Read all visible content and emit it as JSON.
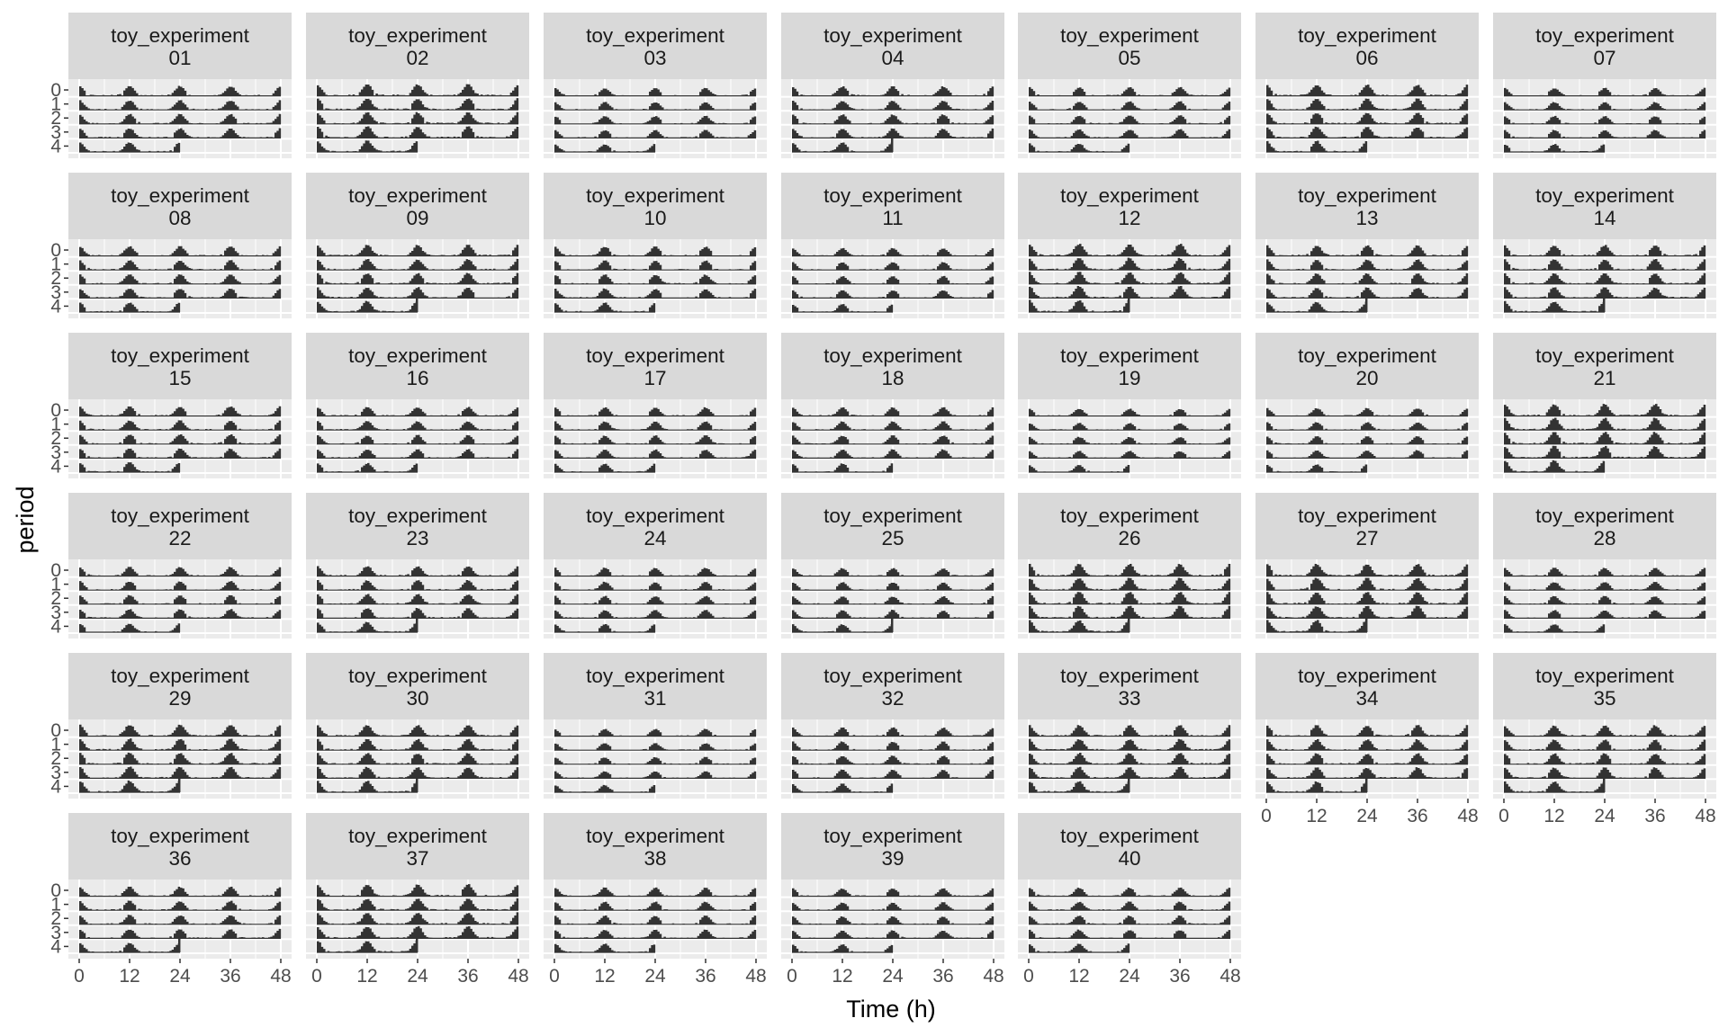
{
  "chart_data": {
    "type": "bar",
    "layout": "faceted-actogram",
    "xlabel": "Time (h)",
    "ylabel": "period",
    "x_ticks": [
      0,
      12,
      24,
      36,
      48
    ],
    "xlim": [
      0,
      48
    ],
    "y_ticks": [
      0,
      1,
      2,
      3,
      4
    ],
    "facet_prefix": "toy_experiment",
    "facets": [
      {
        "label": "01",
        "activity": 0.55,
        "end_spike": false
      },
      {
        "label": "02",
        "activity": 0.8,
        "end_spike": false
      },
      {
        "label": "03",
        "activity": 0.3,
        "end_spike": false
      },
      {
        "label": "04",
        "activity": 0.5,
        "end_spike": true
      },
      {
        "label": "05",
        "activity": 0.4,
        "end_spike": false
      },
      {
        "label": "06",
        "activity": 0.75,
        "end_spike": false
      },
      {
        "label": "07",
        "activity": 0.3,
        "end_spike": false
      },
      {
        "label": "08",
        "activity": 0.55,
        "end_spike": false
      },
      {
        "label": "09",
        "activity": 0.7,
        "end_spike": true
      },
      {
        "label": "10",
        "activity": 0.5,
        "end_spike": false
      },
      {
        "label": "11",
        "activity": 0.3,
        "end_spike": false
      },
      {
        "label": "12",
        "activity": 0.85,
        "end_spike": true
      },
      {
        "label": "13",
        "activity": 0.65,
        "end_spike": true
      },
      {
        "label": "14",
        "activity": 0.7,
        "end_spike": true
      },
      {
        "label": "15",
        "activity": 0.55,
        "end_spike": false
      },
      {
        "label": "16",
        "activity": 0.45,
        "end_spike": false
      },
      {
        "label": "17",
        "activity": 0.4,
        "end_spike": false
      },
      {
        "label": "18",
        "activity": 0.4,
        "end_spike": false
      },
      {
        "label": "19",
        "activity": 0.2,
        "end_spike": false
      },
      {
        "label": "20",
        "activity": 0.3,
        "end_spike": false
      },
      {
        "label": "21",
        "activity": 0.85,
        "end_spike": false
      },
      {
        "label": "22",
        "activity": 0.45,
        "end_spike": false
      },
      {
        "label": "23",
        "activity": 0.6,
        "end_spike": true
      },
      {
        "label": "24",
        "activity": 0.35,
        "end_spike": false
      },
      {
        "label": "25",
        "activity": 0.3,
        "end_spike": true
      },
      {
        "label": "26",
        "activity": 0.9,
        "end_spike": true
      },
      {
        "label": "27",
        "activity": 0.9,
        "end_spike": true
      },
      {
        "label": "28",
        "activity": 0.35,
        "end_spike": false
      },
      {
        "label": "29",
        "activity": 0.8,
        "end_spike": true
      },
      {
        "label": "30",
        "activity": 0.75,
        "end_spike": true
      },
      {
        "label": "31",
        "activity": 0.2,
        "end_spike": false
      },
      {
        "label": "32",
        "activity": 0.4,
        "end_spike": false
      },
      {
        "label": "33",
        "activity": 0.75,
        "end_spike": true
      },
      {
        "label": "34",
        "activity": 0.7,
        "end_spike": true
      },
      {
        "label": "35",
        "activity": 0.7,
        "end_spike": true
      },
      {
        "label": "36",
        "activity": 0.5,
        "end_spike": true
      },
      {
        "label": "37",
        "activity": 0.85,
        "end_spike": true
      },
      {
        "label": "38",
        "activity": 0.4,
        "end_spike": false
      },
      {
        "label": "39",
        "activity": 0.3,
        "end_spike": false
      },
      {
        "label": "40",
        "activity": 0.4,
        "end_spike": false
      }
    ],
    "rows_per_facet": 5,
    "peak_hours": [
      0,
      12,
      24,
      36,
      48
    ],
    "colors": {
      "strip_bg": "#d9d9d9",
      "panel_bg": "#ebebeb",
      "grid": "#ffffff",
      "bars": "#333333",
      "text": "#1a1a1a",
      "ticks": "#4d4d4d"
    }
  }
}
